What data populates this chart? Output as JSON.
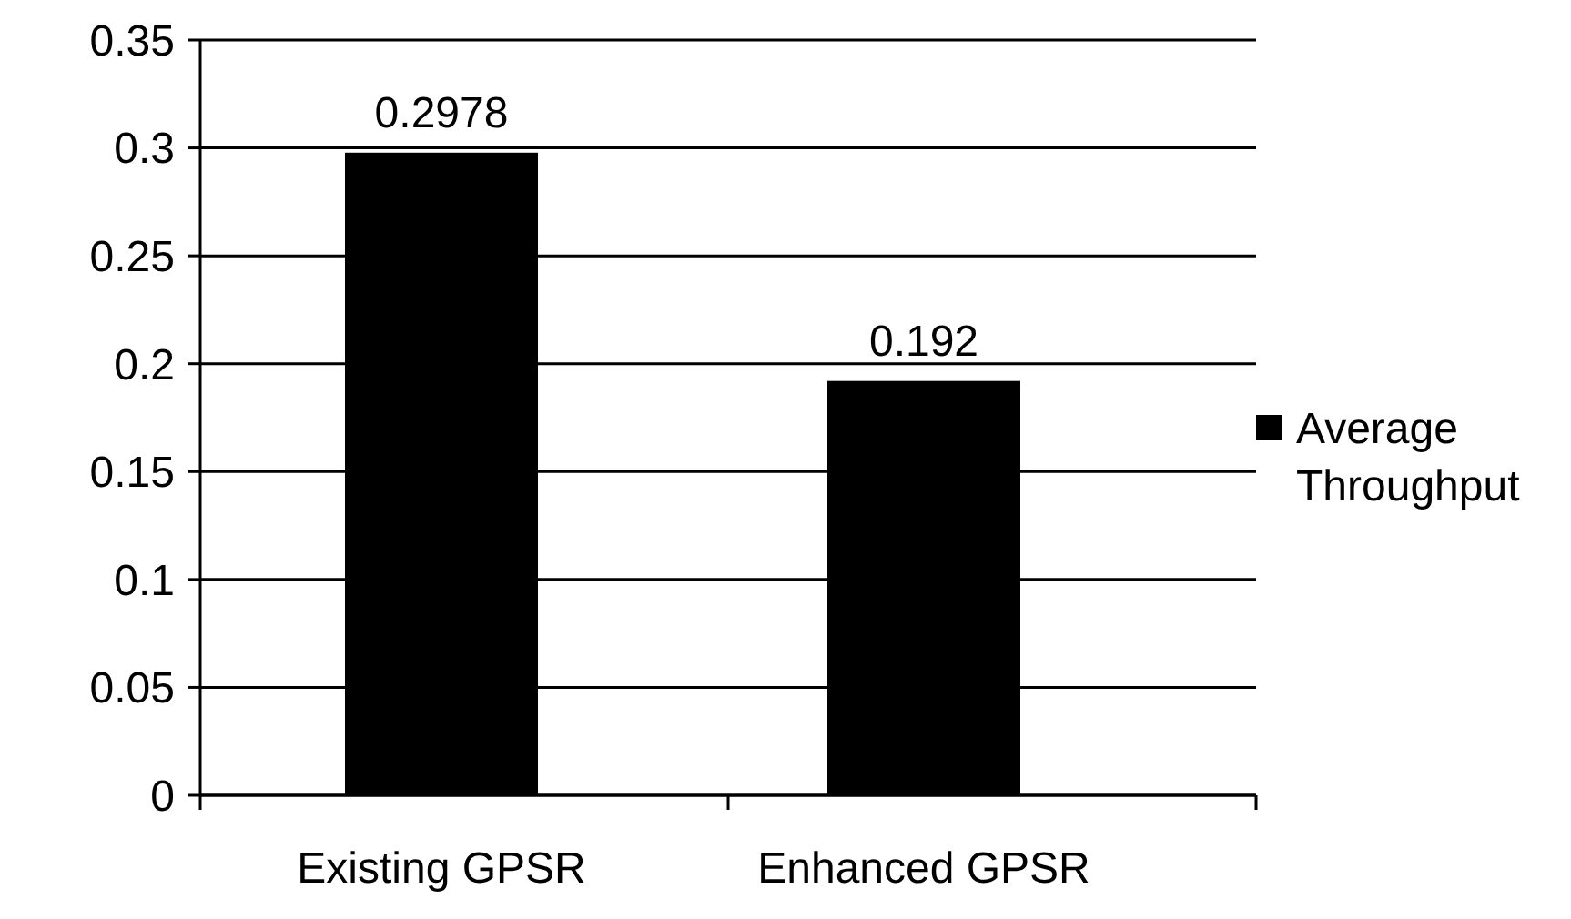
{
  "chart_data": {
    "type": "bar",
    "categories": [
      "Existing GPSR",
      "Enhanced GPSR"
    ],
    "series": [
      {
        "name": "Average Throughput",
        "color": "#000000",
        "values": [
          0.2978,
          0.192
        ]
      }
    ],
    "ylim": [
      0,
      0.35
    ],
    "yticks": [
      0,
      0.05,
      0.1,
      0.15,
      0.2,
      0.25,
      0.3,
      0.35
    ],
    "grid": "y",
    "legend": "right",
    "data_labels": true
  }
}
